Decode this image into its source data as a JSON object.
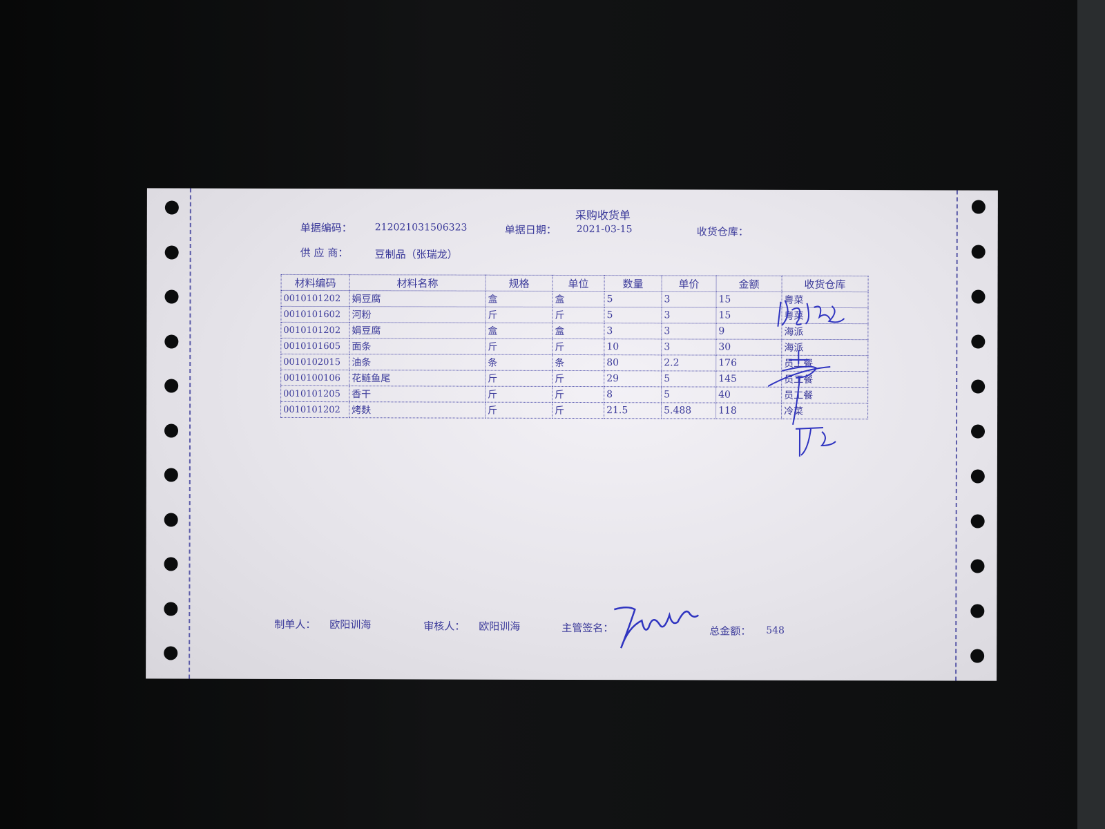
{
  "document": {
    "title": "采购收货单",
    "header": {
      "doc_no_label": "单据编码：",
      "doc_no": "212021031506323",
      "date_label": "单据日期：",
      "date": "2021-03-15",
      "warehouse_label": "收货仓库：",
      "warehouse": "",
      "supplier_label": "供 应 商：",
      "supplier": "豆制品（张瑞龙）"
    },
    "table": {
      "columns": [
        "材料编码",
        "材料名称",
        "规格",
        "单位",
        "数量",
        "单价",
        "金额",
        "收货仓库"
      ],
      "rows": [
        [
          "0010101202",
          "娟豆腐",
          "盒",
          "盒",
          "5",
          "3",
          "15",
          "粤菜"
        ],
        [
          "0010101602",
          "河粉",
          "斤",
          "斤",
          "5",
          "3",
          "15",
          "粤菜"
        ],
        [
          "0010101202",
          "娟豆腐",
          "盒",
          "盒",
          "3",
          "3",
          "9",
          "海派"
        ],
        [
          "0010101605",
          "面条",
          "斤",
          "斤",
          "10",
          "3",
          "30",
          "海派"
        ],
        [
          "0010102015",
          "油条",
          "条",
          "条",
          "80",
          "2.2",
          "176",
          "员工餐"
        ],
        [
          "0010100106",
          "花鲢鱼尾",
          "斤",
          "斤",
          "29",
          "5",
          "145",
          "员工餐"
        ],
        [
          "0010101205",
          "香干",
          "斤",
          "斤",
          "8",
          "5",
          "40",
          "员工餐"
        ],
        [
          "0010101202",
          "烤麸",
          "斤",
          "斤",
          "21.5",
          "5.488",
          "118",
          "冷菜"
        ]
      ]
    },
    "footer": {
      "maker_label": "制单人：",
      "maker": "欧阳训海",
      "reviewer_label": "审核人：",
      "reviewer": "欧阳训海",
      "supervisor_label": "主管签名：",
      "total_label": "总金额：",
      "total": "548"
    },
    "ink_color": "#3b3a9a"
  }
}
